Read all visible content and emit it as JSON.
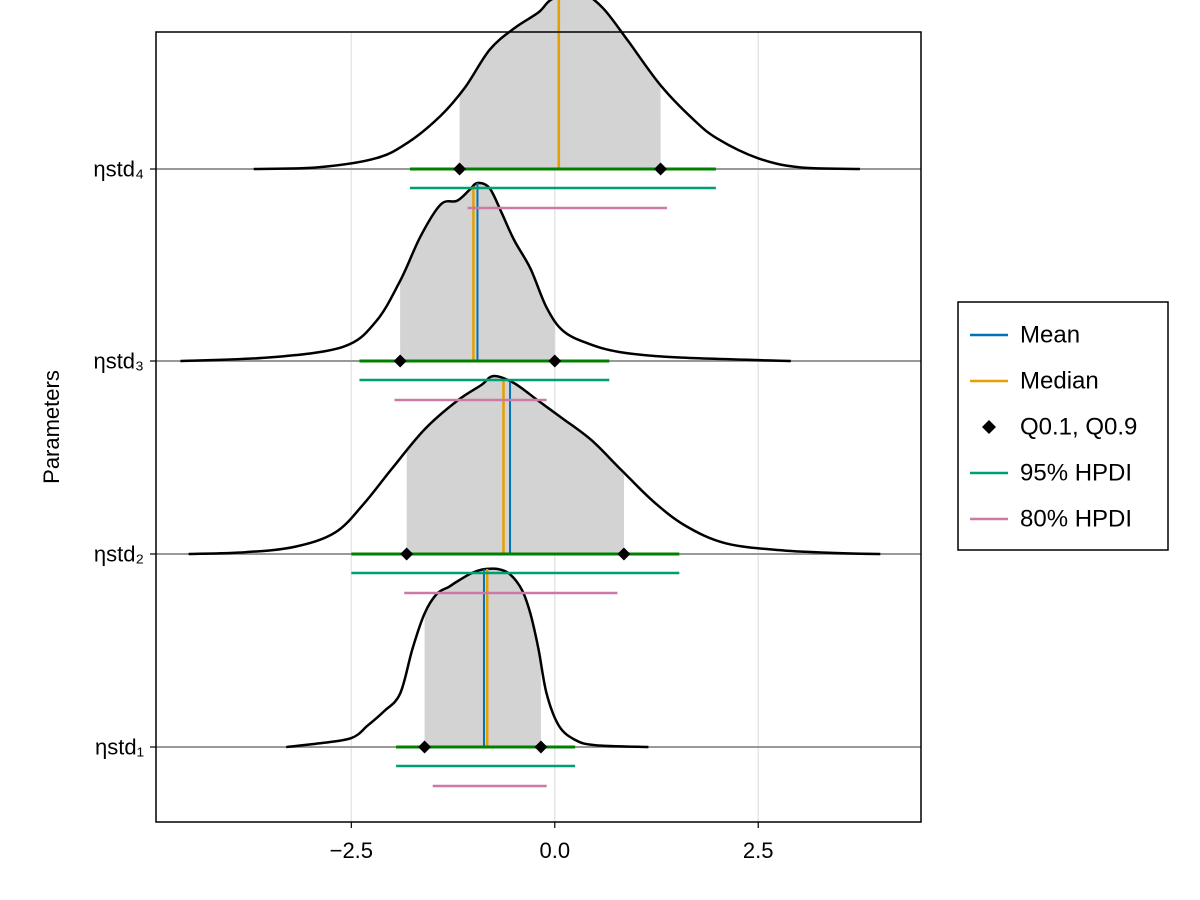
{
  "chart_data": {
    "type": "density",
    "xlabel": "",
    "ylabel": "Parameters",
    "xlim": [
      -4.9,
      4.5
    ],
    "x_ticks": [
      -2.5,
      0.0,
      2.5
    ],
    "x_tick_labels": [
      "−2.5",
      "0.0",
      "2.5"
    ],
    "grid": true,
    "legend_position": "right",
    "legend": [
      {
        "label": "Mean",
        "kind": "line",
        "color": "#0072B2"
      },
      {
        "label": "Median",
        "kind": "line",
        "color": "#E69F00"
      },
      {
        "label": "Q0.1, Q0.9",
        "kind": "marker",
        "color": "#000000"
      },
      {
        "label": "95% HPDI",
        "kind": "line",
        "color": "#009E73"
      },
      {
        "label": "80% HPDI",
        "kind": "line",
        "color": "#CC79A7"
      }
    ],
    "parameters": [
      {
        "name": "ηstd₁",
        "mean": -0.87,
        "median": -0.83,
        "q10": -1.6,
        "q90": -0.17,
        "hpdi95": [
          -1.95,
          0.25
        ],
        "hpdi80": [
          -1.5,
          -0.1
        ],
        "density": [
          [
            -3.3,
            0
          ],
          [
            -2.9,
            0.02
          ],
          [
            -2.5,
            0.05
          ],
          [
            -2.3,
            0.12
          ],
          [
            -2.1,
            0.2
          ],
          [
            -1.9,
            0.3
          ],
          [
            -1.75,
            0.55
          ],
          [
            -1.6,
            0.75
          ],
          [
            -1.45,
            0.86
          ],
          [
            -1.3,
            0.9
          ],
          [
            -1.2,
            0.93
          ],
          [
            -1.05,
            0.97
          ],
          [
            -0.95,
            0.99
          ],
          [
            -0.85,
            1.0
          ],
          [
            -0.7,
            1.0
          ],
          [
            -0.55,
            0.97
          ],
          [
            -0.4,
            0.88
          ],
          [
            -0.3,
            0.75
          ],
          [
            -0.2,
            0.55
          ],
          [
            -0.1,
            0.3
          ],
          [
            0.05,
            0.12
          ],
          [
            0.25,
            0.04
          ],
          [
            0.5,
            0.01
          ],
          [
            1.15,
            0
          ]
        ]
      },
      {
        "name": "ηstd₂",
        "mean": -0.55,
        "median": -0.63,
        "q10": -1.82,
        "q90": 0.85,
        "hpdi95": [
          -2.5,
          1.53
        ],
        "hpdi80": [
          -1.85,
          0.77
        ],
        "density": [
          [
            -4.5,
            0
          ],
          [
            -3.8,
            0.01
          ],
          [
            -3.2,
            0.04
          ],
          [
            -2.7,
            0.12
          ],
          [
            -2.35,
            0.28
          ],
          [
            -2.0,
            0.48
          ],
          [
            -1.6,
            0.7
          ],
          [
            -1.2,
            0.86
          ],
          [
            -0.9,
            0.95
          ],
          [
            -0.75,
            1.0
          ],
          [
            -0.5,
            0.96
          ],
          [
            -0.2,
            0.86
          ],
          [
            0.1,
            0.76
          ],
          [
            0.45,
            0.64
          ],
          [
            0.8,
            0.48
          ],
          [
            1.2,
            0.3
          ],
          [
            1.6,
            0.16
          ],
          [
            2.1,
            0.06
          ],
          [
            2.8,
            0.02
          ],
          [
            3.5,
            0.005
          ],
          [
            4.0,
            0
          ]
        ]
      },
      {
        "name": "ηstd₃",
        "mean": -0.95,
        "median": -1.0,
        "q10": -1.9,
        "q90": 0.0,
        "hpdi95": [
          -2.4,
          0.67
        ],
        "hpdi80": [
          -1.97,
          -0.1
        ],
        "density": [
          [
            -4.6,
            0
          ],
          [
            -3.5,
            0.02
          ],
          [
            -2.6,
            0.08
          ],
          [
            -2.2,
            0.22
          ],
          [
            -1.9,
            0.45
          ],
          [
            -1.65,
            0.7
          ],
          [
            -1.4,
            0.88
          ],
          [
            -1.2,
            0.9
          ],
          [
            -1.05,
            0.96
          ],
          [
            -0.95,
            1.0
          ],
          [
            -0.8,
            0.97
          ],
          [
            -0.65,
            0.83
          ],
          [
            -0.5,
            0.68
          ],
          [
            -0.3,
            0.52
          ],
          [
            -0.1,
            0.3
          ],
          [
            0.1,
            0.17
          ],
          [
            0.4,
            0.1
          ],
          [
            0.8,
            0.05
          ],
          [
            1.5,
            0.02
          ],
          [
            2.9,
            0
          ]
        ]
      },
      {
        "name": "ηstd₄",
        "mean": 0.05,
        "median": 0.05,
        "q10": -1.17,
        "q90": 1.3,
        "hpdi95": [
          -1.78,
          1.98
        ],
        "hpdi80": [
          -1.07,
          1.38
        ],
        "density": [
          [
            -3.7,
            0
          ],
          [
            -2.9,
            0.01
          ],
          [
            -2.2,
            0.06
          ],
          [
            -1.8,
            0.15
          ],
          [
            -1.4,
            0.3
          ],
          [
            -1.1,
            0.46
          ],
          [
            -0.8,
            0.67
          ],
          [
            -0.5,
            0.79
          ],
          [
            -0.2,
            0.88
          ],
          [
            -0.05,
            0.95
          ],
          [
            0.2,
            0.99
          ],
          [
            0.35,
            0.99
          ],
          [
            0.6,
            0.9
          ],
          [
            0.9,
            0.72
          ],
          [
            1.3,
            0.47
          ],
          [
            1.7,
            0.28
          ],
          [
            2.0,
            0.17
          ],
          [
            2.5,
            0.06
          ],
          [
            3.0,
            0.01
          ],
          [
            3.75,
            0
          ]
        ]
      }
    ],
    "colors": {
      "mean": "#0072B2",
      "median": "#E69F00",
      "quantile_marker": "#000000",
      "band_line": "#008000",
      "hpdi95": "#009E73",
      "hpdi80": "#CC79A7",
      "density_fill": "#D3D3D3",
      "density_outline": "#000000",
      "baseline": "#999999",
      "grid": "#e6e6e6"
    }
  }
}
